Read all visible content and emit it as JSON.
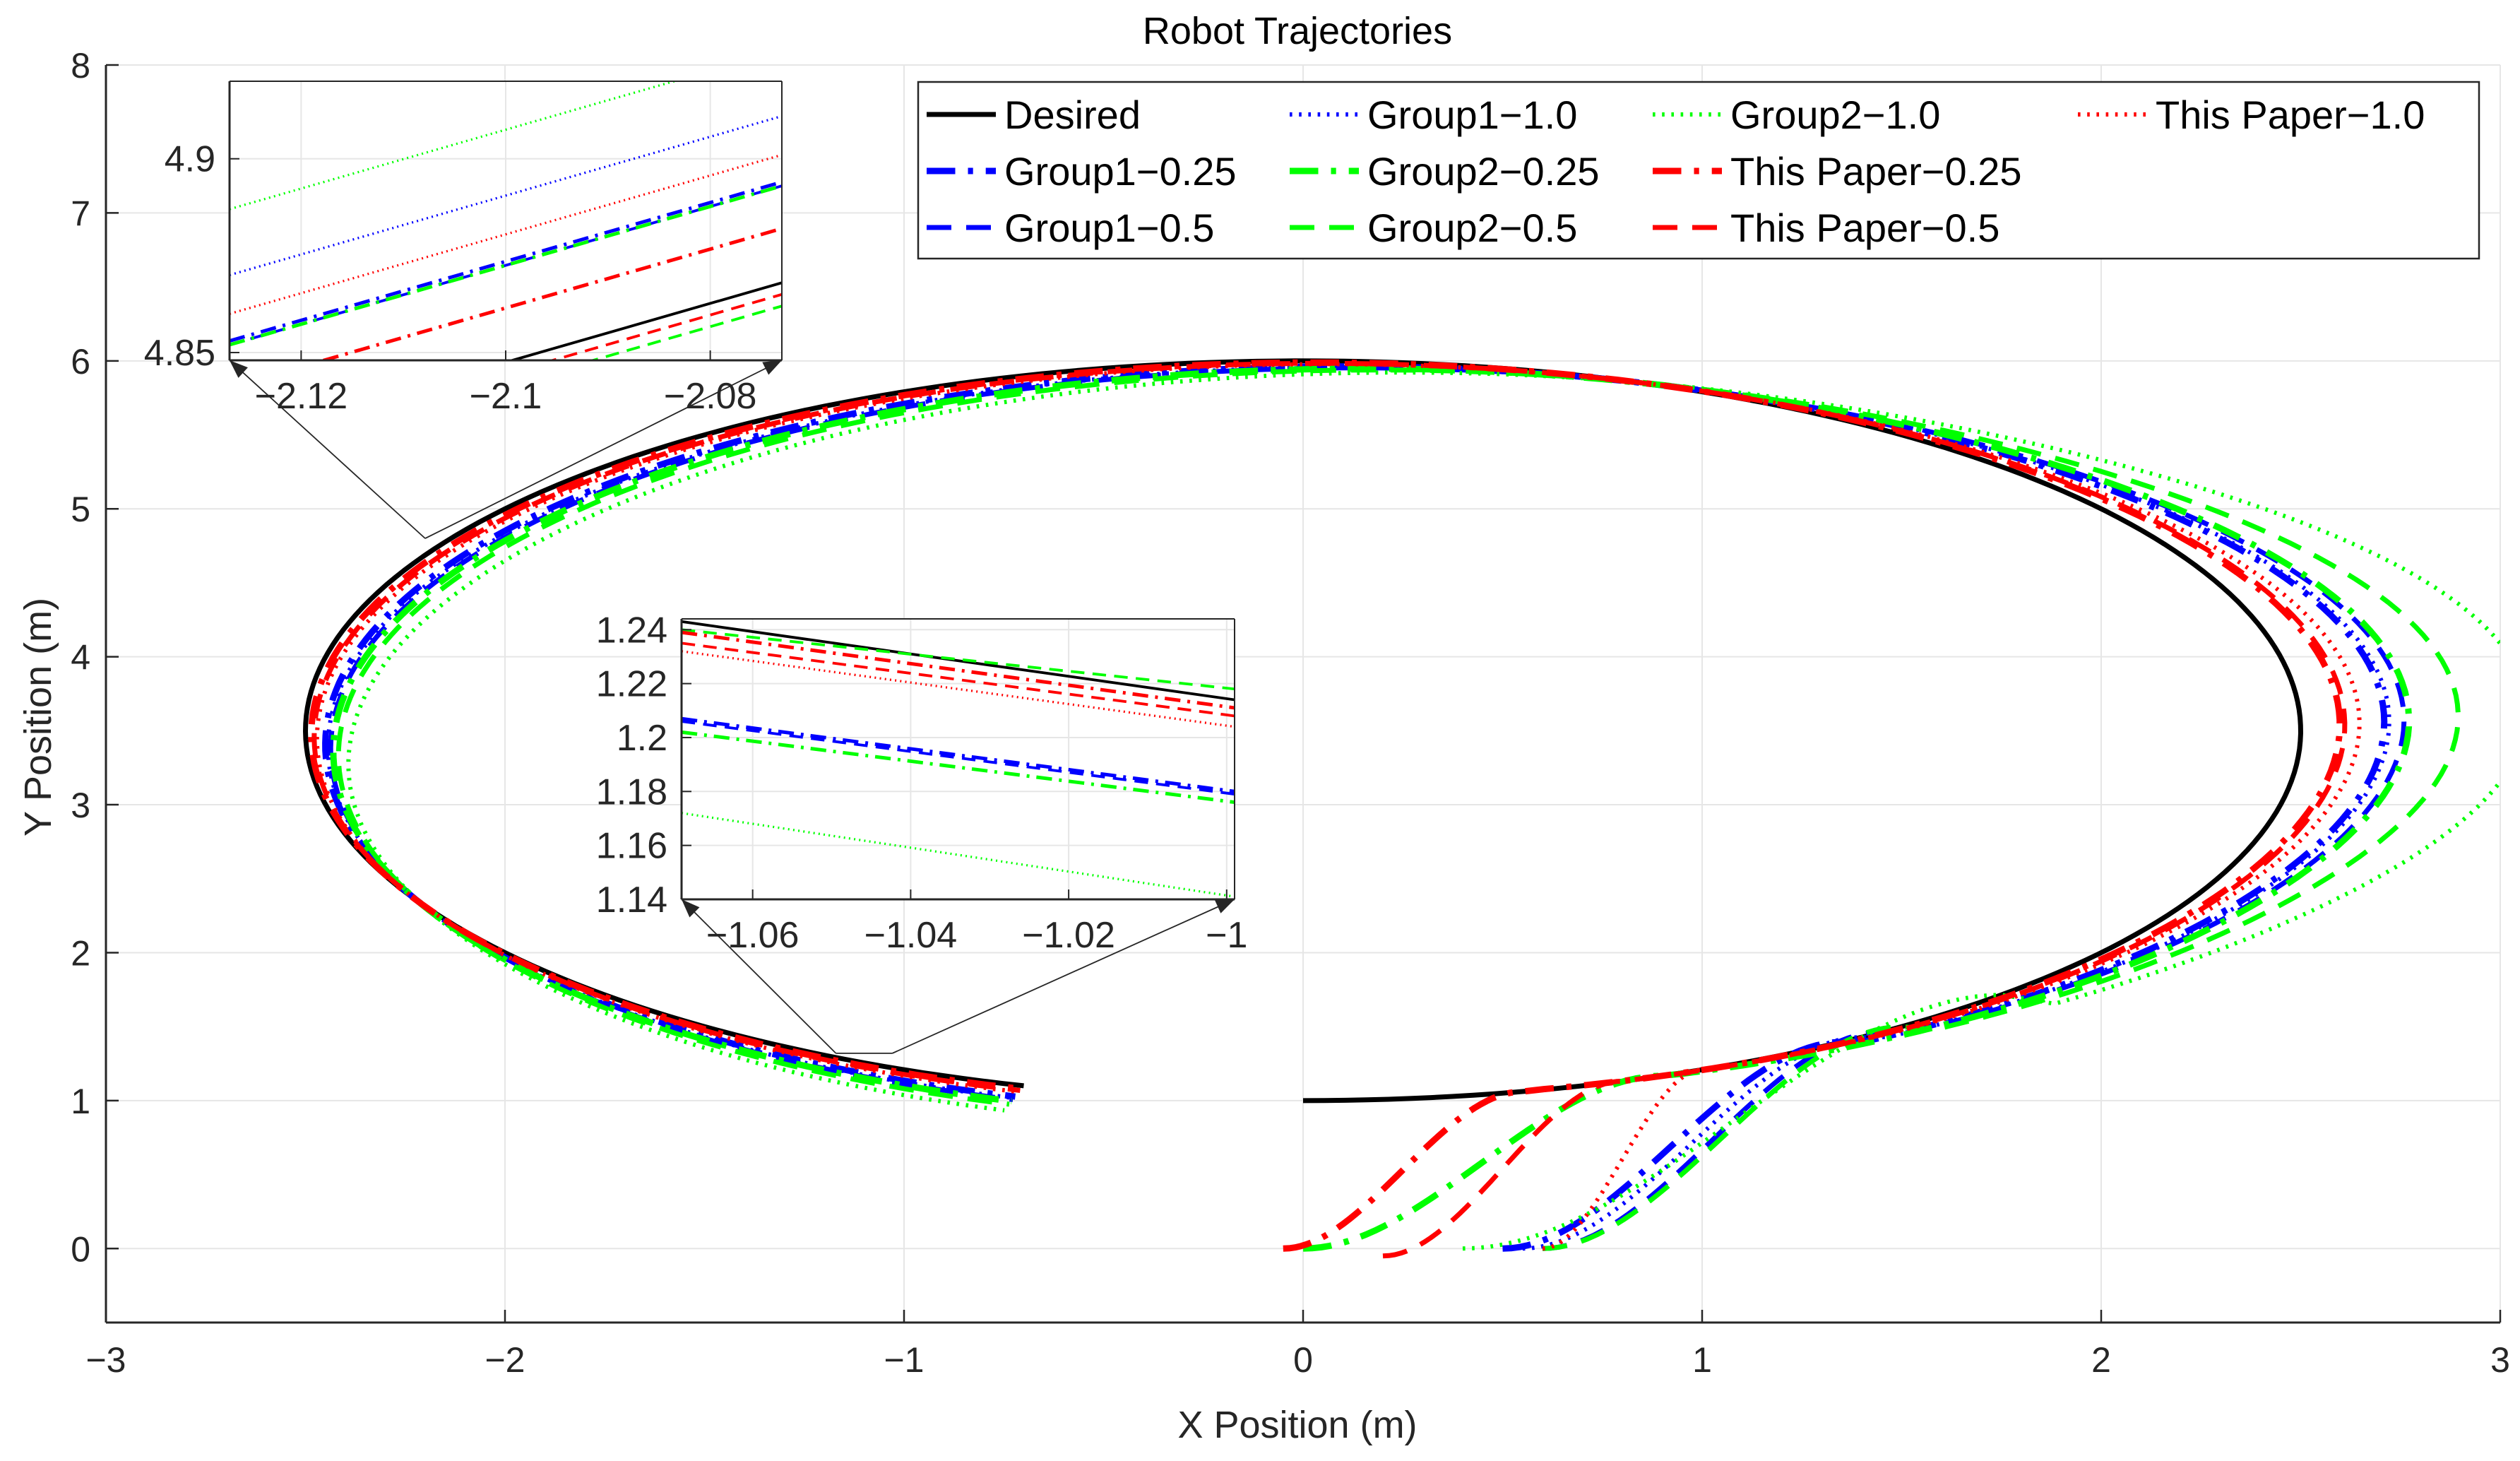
{
  "chart_data": {
    "type": "line",
    "title": "Robot Trajectories",
    "xlabel": "X Position (m)",
    "ylabel": "Y Position (m)",
    "xlim": [
      -3,
      3
    ],
    "ylim": [
      -0.5,
      8
    ],
    "xticks": [
      -3,
      -2,
      -1,
      0,
      1,
      2,
      3
    ],
    "xtick_labels": [
      "−3",
      "−2",
      "−1",
      "0",
      "1",
      "2",
      "3"
    ],
    "yticks": [
      0,
      1,
      2,
      3,
      4,
      5,
      6,
      7,
      8
    ],
    "ytick_labels": [
      "0",
      "1",
      "2",
      "3",
      "4",
      "5",
      "6",
      "7",
      "8"
    ],
    "grid": true,
    "legend_location": "top-right",
    "colors": {
      "black": "#000000",
      "blue": "#0000ff",
      "green": "#00ff00",
      "red": "#ff0000"
    },
    "desired_path": {
      "shape": "ellipse-arc",
      "center": [
        0,
        3.5
      ],
      "semi_axes": [
        2.5,
        2.5
      ],
      "start": [
        0,
        1
      ],
      "end": [
        -0.7,
        1.1
      ]
    },
    "series": [
      {
        "name": "Desired",
        "label": "Desired",
        "color": "black",
        "style": "solid",
        "width": 7,
        "start": [
          0,
          1
        ],
        "offset": 0
      },
      {
        "name": "Group1-1.0",
        "label": "Group1−1.0",
        "color": "blue",
        "style": "dotted",
        "width": 6,
        "start": [
          0.55,
          0
        ],
        "merge_x": 1.4,
        "offset": 0.04,
        "overshoot": 0.05
      },
      {
        "name": "Group2-1.0",
        "label": "Group2−1.0",
        "color": "green",
        "style": "dotted",
        "width": 6,
        "start": [
          0.4,
          0
        ],
        "merge_x": 1.75,
        "offset": 0.08,
        "overshoot": 0.15
      },
      {
        "name": "This Paper-1.0",
        "label": "This Paper−1.0",
        "color": "red",
        "style": "dotted",
        "width": 6,
        "start": [
          0.6,
          0
        ],
        "merge_x": 1.0,
        "offset": 0.02,
        "overshoot": 0.04
      },
      {
        "name": "Group1-0.25",
        "label": "Group1−0.25",
        "color": "blue",
        "style": "dashdot",
        "width": 9,
        "start": [
          0.5,
          0
        ],
        "merge_x": 1.35,
        "offset": 0.035,
        "overshoot": 0.05
      },
      {
        "name": "Group2-0.25",
        "label": "Group2−0.25",
        "color": "green",
        "style": "dashdot",
        "width": 9,
        "start": [
          0,
          0
        ],
        "merge_x": 0.9,
        "offset": 0.05,
        "overshoot": 0.06
      },
      {
        "name": "This Paper-0.25",
        "label": "This Paper−0.25",
        "color": "red",
        "style": "dashdot",
        "width": 9,
        "start": [
          -0.05,
          0
        ],
        "merge_x": 0.55,
        "offset": 0.01,
        "overshoot": 0.03
      },
      {
        "name": "Group1-0.5",
        "label": "Group1−0.5",
        "color": "blue",
        "style": "dashed",
        "width": 7,
        "start": [
          0.6,
          0
        ],
        "merge_x": 1.45,
        "offset": 0.045,
        "overshoot": 0.06
      },
      {
        "name": "Group2-0.5",
        "label": "Group2−0.5",
        "color": "green",
        "style": "dashed",
        "width": 7,
        "start": [
          0.6,
          0
        ],
        "merge_x": 1.5,
        "offset": 0.06,
        "overshoot": 0.1
      },
      {
        "name": "This Paper-0.5",
        "label": "This Paper−0.5",
        "color": "red",
        "style": "dashed",
        "width": 7,
        "start": [
          0.2,
          -0.05
        ],
        "merge_x": 0.8,
        "offset": 0.015,
        "overshoot": 0.03
      }
    ],
    "insets": [
      {
        "name": "inset-top",
        "xlim": [
          -2.127,
          -2.073
        ],
        "ylim": [
          4.848,
          4.92
        ],
        "xticks": [
          -2.12,
          -2.1,
          -2.08
        ],
        "xtick_labels": [
          "−2.12",
          "−2.1",
          "−2.08"
        ],
        "yticks": [
          4.85,
          4.9
        ],
        "ytick_labels": [
          "4.85",
          "4.9"
        ],
        "target_point": [
          -2.2,
          4.8
        ],
        "lines": [
          {
            "series": "Desired",
            "y0": 4.827,
            "y1": 4.868
          },
          {
            "series": "This Paper-0.25",
            "y0": 4.841,
            "y1": 4.882
          },
          {
            "series": "This Paper-0.5",
            "y0": 4.824,
            "y1": 4.865
          },
          {
            "series": "Group2-0.5",
            "y0": 4.821,
            "y1": 4.862
          },
          {
            "series": "This Paper-1.0",
            "y0": 4.86,
            "y1": 4.901
          },
          {
            "series": "Group1-0.25",
            "y0": 4.853,
            "y1": 4.894
          },
          {
            "series": "Group1-0.5",
            "y0": 4.852,
            "y1": 4.893
          },
          {
            "series": "Group2-0.25",
            "y0": 4.852,
            "y1": 4.893
          },
          {
            "series": "Group1-1.0",
            "y0": 4.87,
            "y1": 4.911
          },
          {
            "series": "Group2-1.0",
            "y0": 4.887,
            "y1": 4.928
          }
        ]
      },
      {
        "name": "inset-bottom",
        "xlim": [
          -1.069,
          -0.999
        ],
        "ylim": [
          1.14,
          1.244
        ],
        "xticks": [
          -1.06,
          -1.04,
          -1.02,
          -1
        ],
        "xtick_labels": [
          "−1.06",
          "−1.04",
          "−1.02",
          "−1"
        ],
        "yticks": [
          1.14,
          1.16,
          1.18,
          1.2,
          1.22,
          1.24
        ],
        "ytick_labels": [
          "1.14",
          "1.16",
          "1.18",
          "1.2",
          "1.22",
          "1.24"
        ],
        "target_point": [
          -1.1,
          1.32
        ],
        "lines": [
          {
            "series": "Desired",
            "y0": 1.243,
            "y1": 1.214
          },
          {
            "series": "Group2-0.5",
            "y0": 1.24,
            "y1": 1.218
          },
          {
            "series": "This Paper-0.25",
            "y0": 1.239,
            "y1": 1.211
          },
          {
            "series": "This Paper-0.5",
            "y0": 1.235,
            "y1": 1.208
          },
          {
            "series": "This Paper-1.0",
            "y0": 1.232,
            "y1": 1.204
          },
          {
            "series": "Group1-0.25",
            "y0": 1.207,
            "y1": 1.18
          },
          {
            "series": "Group1-0.5",
            "y0": 1.206,
            "y1": 1.179
          },
          {
            "series": "Group2-0.25",
            "y0": 1.202,
            "y1": 1.176
          },
          {
            "series": "Group2-1.0",
            "y0": 1.172,
            "y1": 1.141
          }
        ]
      }
    ]
  }
}
